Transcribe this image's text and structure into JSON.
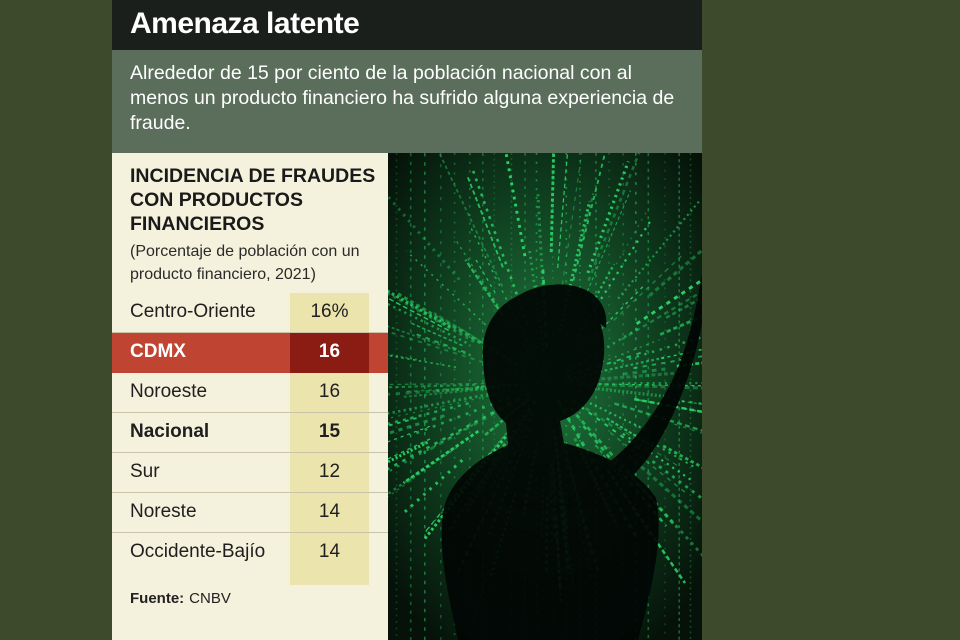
{
  "headline": "Amenaza latente",
  "subhead": "Alrededor de 15 por ciento de la población nacional con al menos un producto financiero ha sufrido alguna experiencia de fraude.",
  "chart_data": {
    "type": "table",
    "title": "INCIDENCIA DE FRAUDES CON PRODUCTOS FINANCIEROS",
    "subtitle": "(Porcentaje de población con un producto financiero, 2021)",
    "rows": [
      {
        "label": "Centro-Oriente",
        "value": "16%",
        "style": "normal"
      },
      {
        "label": "CDMX",
        "value": "16",
        "style": "highlight"
      },
      {
        "label": "Noroeste",
        "value": "16",
        "style": "normal"
      },
      {
        "label": "Nacional",
        "value": "15",
        "style": "bold"
      },
      {
        "label": "Sur",
        "value": "12",
        "style": "normal"
      },
      {
        "label": "Noreste",
        "value": "14",
        "style": "normal"
      },
      {
        "label": "Occidente-Bajío",
        "value": "14",
        "style": "normal"
      }
    ],
    "source_label": "Fuente:",
    "source": "CNBV"
  },
  "photo": {
    "icon": "hacker-silhouette-binary-code-image",
    "colors": {
      "background": "#0a1a0f",
      "code": "#2bd96a",
      "silhouette": "#020604"
    }
  },
  "colors": {
    "page_background": "#3d4a2c",
    "headline_bar": "#1b1f1c",
    "subhead_bar": "#5b6e5b",
    "table_background": "#f4f1dc",
    "value_column": "#ece4ad",
    "highlight_row": "#bf4532",
    "highlight_value": "#8a1c14"
  }
}
